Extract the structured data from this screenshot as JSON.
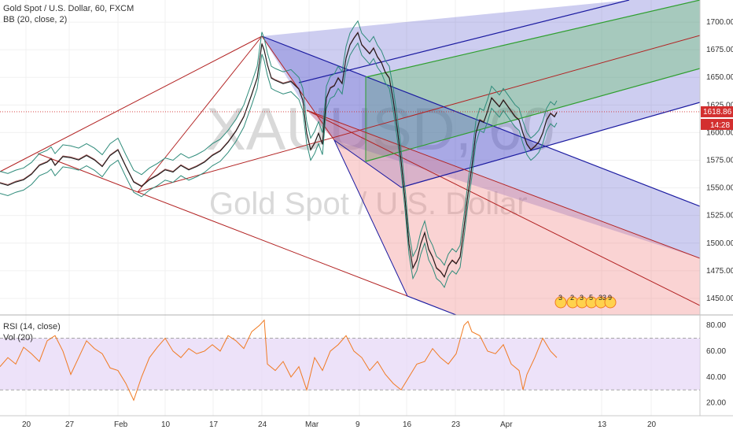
{
  "header": {
    "title": "Gold Spot / U.S. Dollar, 60, FXCM",
    "indicator": "BB (20, close, 2)"
  },
  "watermark": {
    "symbol": "XAUUSD, 60",
    "name": "Gold Spot / U.S. Dollar"
  },
  "lower_legend": {
    "rsi": "RSI (14, close)",
    "vol": "Vol (20)"
  },
  "badges": {
    "last_price": "1618.86",
    "countdown": "14:28",
    "events": [
      "3",
      "2",
      "3",
      "5",
      "33",
      "9"
    ]
  },
  "colors": {
    "price": "#1a1a1a",
    "bollinger": "#2e8b7a",
    "pitchfork_red": "#b22222",
    "pitchfork_blue": "#1a1aa0",
    "fill_blue": "#4b4bc8",
    "fill_green": "#5ec45e",
    "fill_red": "#f08080",
    "rsi_line": "#f07a22",
    "rsi_band": "#e6d6f7",
    "last_price_badge": "#d32f2f",
    "countdown_badge": "#d32f2f"
  },
  "chart_data": [
    {
      "type": "line",
      "title": "Gold Spot / U.S. Dollar, 60, FXCM",
      "x_ticks": [
        "20",
        "27",
        "Feb",
        "10",
        "17",
        "24",
        "Mar",
        "9",
        "16",
        "23",
        "Apr",
        "13",
        "20"
      ],
      "y_ticks": [
        1450,
        1475,
        1500,
        1525,
        1550,
        1575,
        1600,
        1625,
        1650,
        1675,
        1700
      ],
      "ylim": [
        1435,
        1720
      ],
      "grid": true,
      "series": [
        {
          "values": [
            [
              0,
              1555
            ],
            [
              10,
              1553
            ],
            [
              20,
              1556
            ],
            [
              30,
              1558
            ],
            [
              40,
              1563
            ],
            [
              50,
              1571
            ],
            [
              60,
              1574
            ],
            [
              65,
              1577
            ],
            [
              70,
              1571
            ],
            [
              80,
              1579
            ],
            [
              90,
              1578
            ],
            [
              100,
              1576
            ],
            [
              110,
              1580
            ],
            [
              120,
              1576
            ],
            [
              130,
              1570
            ],
            [
              140,
              1580
            ],
            [
              150,
              1585
            ],
            [
              160,
              1570
            ],
            [
              170,
              1556
            ],
            [
              180,
              1552
            ],
            [
              190,
              1558
            ],
            [
              200,
              1562
            ],
            [
              210,
              1567
            ],
            [
              220,
              1565
            ],
            [
              230,
              1571
            ],
            [
              240,
              1567
            ],
            [
              250,
              1570
            ],
            [
              260,
              1574
            ],
            [
              270,
              1580
            ],
            [
              280,
              1584
            ],
            [
              290,
              1592
            ],
            [
              300,
              1602
            ],
            [
              310,
              1615
            ],
            [
              320,
              1635
            ],
            [
              327,
              1650
            ],
            [
              333,
              1681
            ],
            [
              336,
              1675
            ],
            [
              340,
              1662
            ],
            [
              345,
              1650
            ],
            [
              350,
              1648
            ],
            [
              360,
              1645
            ],
            [
              370,
              1647
            ],
            [
              380,
              1640
            ],
            [
              385,
              1630
            ],
            [
              390,
              1600
            ],
            [
              395,
              1585
            ],
            [
              400,
              1591
            ],
            [
              405,
              1600
            ],
            [
              410,
              1590
            ],
            [
              415,
              1632
            ],
            [
              420,
              1641
            ],
            [
              425,
              1643
            ],
            [
              430,
              1650
            ],
            [
              435,
              1645
            ],
            [
              440,
              1668
            ],
            [
              445,
              1680
            ],
            [
              450,
              1686
            ],
            [
              455,
              1691
            ],
            [
              460,
              1680
            ],
            [
              465,
              1676
            ],
            [
              470,
              1672
            ],
            [
              475,
              1677
            ],
            [
              480,
              1669
            ],
            [
              485,
              1664
            ],
            [
              490,
              1655
            ],
            [
              495,
              1650
            ],
            [
              500,
              1630
            ],
            [
              505,
              1605
            ],
            [
              510,
              1575
            ],
            [
              515,
              1540
            ],
            [
              520,
              1500
            ],
            [
              525,
              1478
            ],
            [
              530,
              1485
            ],
            [
              535,
              1500
            ],
            [
              540,
              1510
            ],
            [
              545,
              1495
            ],
            [
              550,
              1488
            ],
            [
              555,
              1478
            ],
            [
              560,
              1475
            ],
            [
              565,
              1470
            ],
            [
              570,
              1480
            ],
            [
              575,
              1485
            ],
            [
              580,
              1482
            ],
            [
              585,
              1488
            ],
            [
              590,
              1515
            ],
            [
              595,
              1545
            ],
            [
              600,
              1570
            ],
            [
              605,
              1600
            ],
            [
              610,
              1612
            ],
            [
              615,
              1610
            ],
            [
              620,
              1620
            ],
            [
              625,
              1632
            ],
            [
              630,
              1628
            ],
            [
              635,
              1624
            ],
            [
              640,
              1630
            ],
            [
              645,
              1625
            ],
            [
              650,
              1620
            ],
            [
              655,
              1615
            ],
            [
              660,
              1612
            ],
            [
              665,
              1600
            ],
            [
              670,
              1590
            ],
            [
              675,
              1585
            ],
            [
              680,
              1588
            ],
            [
              685,
              1592
            ],
            [
              690,
              1600
            ],
            [
              695,
              1612
            ],
            [
              700,
              1618
            ],
            [
              705,
              1615
            ],
            [
              708,
              1618.86
            ]
          ]
        }
      ]
    },
    {
      "type": "line",
      "title": "RSI (14, close)",
      "y_ticks": [
        20,
        40,
        60,
        80
      ],
      "ylim": [
        10,
        88
      ],
      "series": [
        {
          "values": [
            [
              0,
              48
            ],
            [
              10,
              55
            ],
            [
              20,
              50
            ],
            [
              30,
              63
            ],
            [
              40,
              58
            ],
            [
              50,
              52
            ],
            [
              60,
              68
            ],
            [
              70,
              72
            ],
            [
              80,
              60
            ],
            [
              90,
              42
            ],
            [
              100,
              55
            ],
            [
              110,
              68
            ],
            [
              120,
              62
            ],
            [
              130,
              58
            ],
            [
              140,
              47
            ],
            [
              150,
              45
            ],
            [
              160,
              35
            ],
            [
              170,
              22
            ],
            [
              180,
              40
            ],
            [
              190,
              55
            ],
            [
              200,
              63
            ],
            [
              210,
              70
            ],
            [
              220,
              60
            ],
            [
              230,
              55
            ],
            [
              240,
              62
            ],
            [
              250,
              58
            ],
            [
              260,
              60
            ],
            [
              270,
              65
            ],
            [
              280,
              60
            ],
            [
              290,
              72
            ],
            [
              300,
              68
            ],
            [
              310,
              62
            ],
            [
              320,
              75
            ],
            [
              330,
              80
            ],
            [
              336,
              84
            ],
            [
              340,
              50
            ],
            [
              350,
              45
            ],
            [
              360,
              52
            ],
            [
              370,
              40
            ],
            [
              380,
              48
            ],
            [
              390,
              30
            ],
            [
              400,
              55
            ],
            [
              410,
              45
            ],
            [
              420,
              60
            ],
            [
              430,
              65
            ],
            [
              440,
              72
            ],
            [
              450,
              60
            ],
            [
              460,
              55
            ],
            [
              470,
              45
            ],
            [
              480,
              52
            ],
            [
              490,
              42
            ],
            [
              500,
              35
            ],
            [
              510,
              30
            ],
            [
              520,
              40
            ],
            [
              530,
              50
            ],
            [
              540,
              52
            ],
            [
              550,
              62
            ],
            [
              560,
              55
            ],
            [
              570,
              50
            ],
            [
              580,
              58
            ],
            [
              590,
              80
            ],
            [
              595,
              83
            ],
            [
              600,
              75
            ],
            [
              610,
              72
            ],
            [
              620,
              60
            ],
            [
              630,
              58
            ],
            [
              640,
              65
            ],
            [
              650,
              50
            ],
            [
              660,
              45
            ],
            [
              665,
              30
            ],
            [
              670,
              42
            ],
            [
              680,
              55
            ],
            [
              690,
              70
            ],
            [
              700,
              60
            ],
            [
              708,
              55
            ]
          ]
        }
      ]
    }
  ]
}
